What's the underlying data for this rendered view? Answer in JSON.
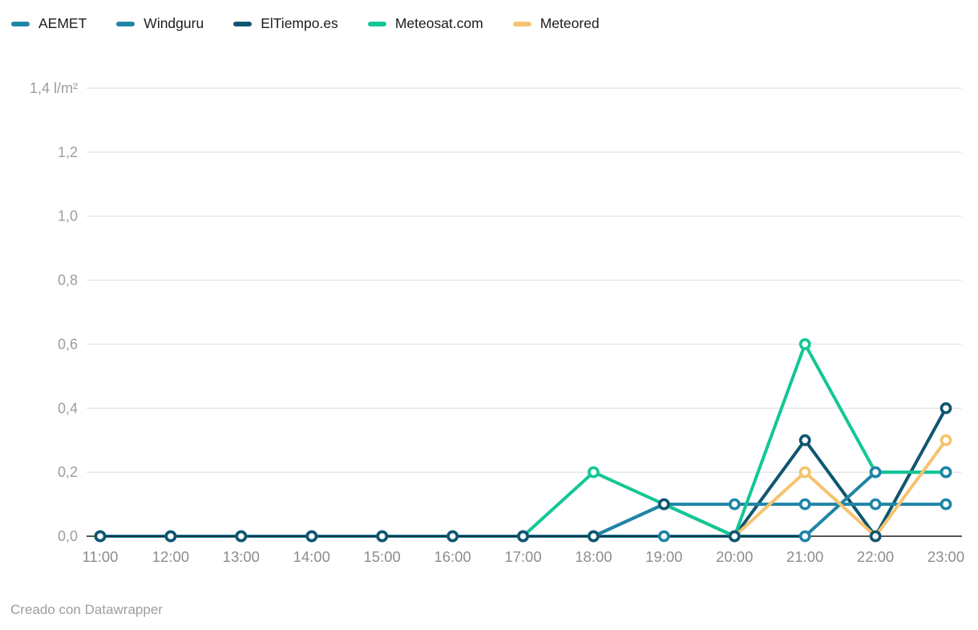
{
  "chart_data": {
    "type": "line",
    "title": "",
    "xlabel": "",
    "ylabel": "l/m²",
    "ylim": [
      0,
      1.4
    ],
    "grid": true,
    "legend_position": "top",
    "categories": [
      "11:00",
      "12:00",
      "13:00",
      "14:00",
      "15:00",
      "16:00",
      "17:00",
      "18:00",
      "19:00",
      "20:00",
      "21:00",
      "22:00",
      "23:00"
    ],
    "y_ticks": [
      {
        "value": 1.4,
        "label": "1,4 l/m²"
      },
      {
        "value": 1.2,
        "label": "1,2"
      },
      {
        "value": 1.0,
        "label": "1,0"
      },
      {
        "value": 0.8,
        "label": "0,8"
      },
      {
        "value": 0.6,
        "label": "0,6"
      },
      {
        "value": 0.4,
        "label": "0,4"
      },
      {
        "value": 0.2,
        "label": "0,2"
      },
      {
        "value": 0.0,
        "label": "0,0"
      }
    ],
    "series": [
      {
        "name": "AEMET",
        "color": "#1f85a7",
        "values": [
          0,
          0,
          0,
          0,
          0,
          0,
          0,
          0,
          0,
          0,
          0,
          0.2,
          0.2
        ]
      },
      {
        "name": "Windguru",
        "color": "#1f85a7",
        "values": [
          0,
          0,
          0,
          0,
          0,
          0,
          0,
          0,
          0.1,
          0.1,
          0.1,
          0.1,
          0.1
        ]
      },
      {
        "name": "ElTiempo.es",
        "color": "#0f5670",
        "values": [
          0,
          0,
          0,
          0,
          0,
          0,
          0,
          0,
          0.1,
          0,
          0.3,
          0,
          0.4
        ]
      },
      {
        "name": "Meteosat.com",
        "color": "#13c795",
        "values": [
          null,
          null,
          null,
          null,
          null,
          null,
          0,
          0.2,
          0.1,
          0,
          0.6,
          0.2,
          0.2
        ]
      },
      {
        "name": "Meteored",
        "color": "#f6c36f",
        "values": [
          null,
          null,
          null,
          null,
          null,
          null,
          null,
          null,
          null,
          0,
          0.2,
          0,
          0.3
        ]
      }
    ]
  },
  "footer": {
    "credit": "Creado con Datawrapper"
  }
}
